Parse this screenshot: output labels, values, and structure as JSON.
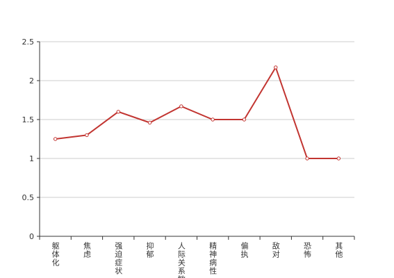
{
  "chart_data": {
    "type": "line",
    "categories": [
      "躯体化",
      "焦虑",
      "强迫症状",
      "抑郁",
      "人际关系敏感",
      "精神病性",
      "偏执",
      "敌对",
      "恐怖",
      "其他"
    ],
    "values": [
      1.25,
      1.3,
      1.6,
      1.46,
      1.67,
      1.5,
      1.5,
      2.17,
      1,
      1
    ],
    "color": "#c23531",
    "ylim": [
      0,
      2.5
    ],
    "yticks": [
      0,
      0.5,
      1,
      1.5,
      2,
      2.5
    ],
    "grid": true
  }
}
